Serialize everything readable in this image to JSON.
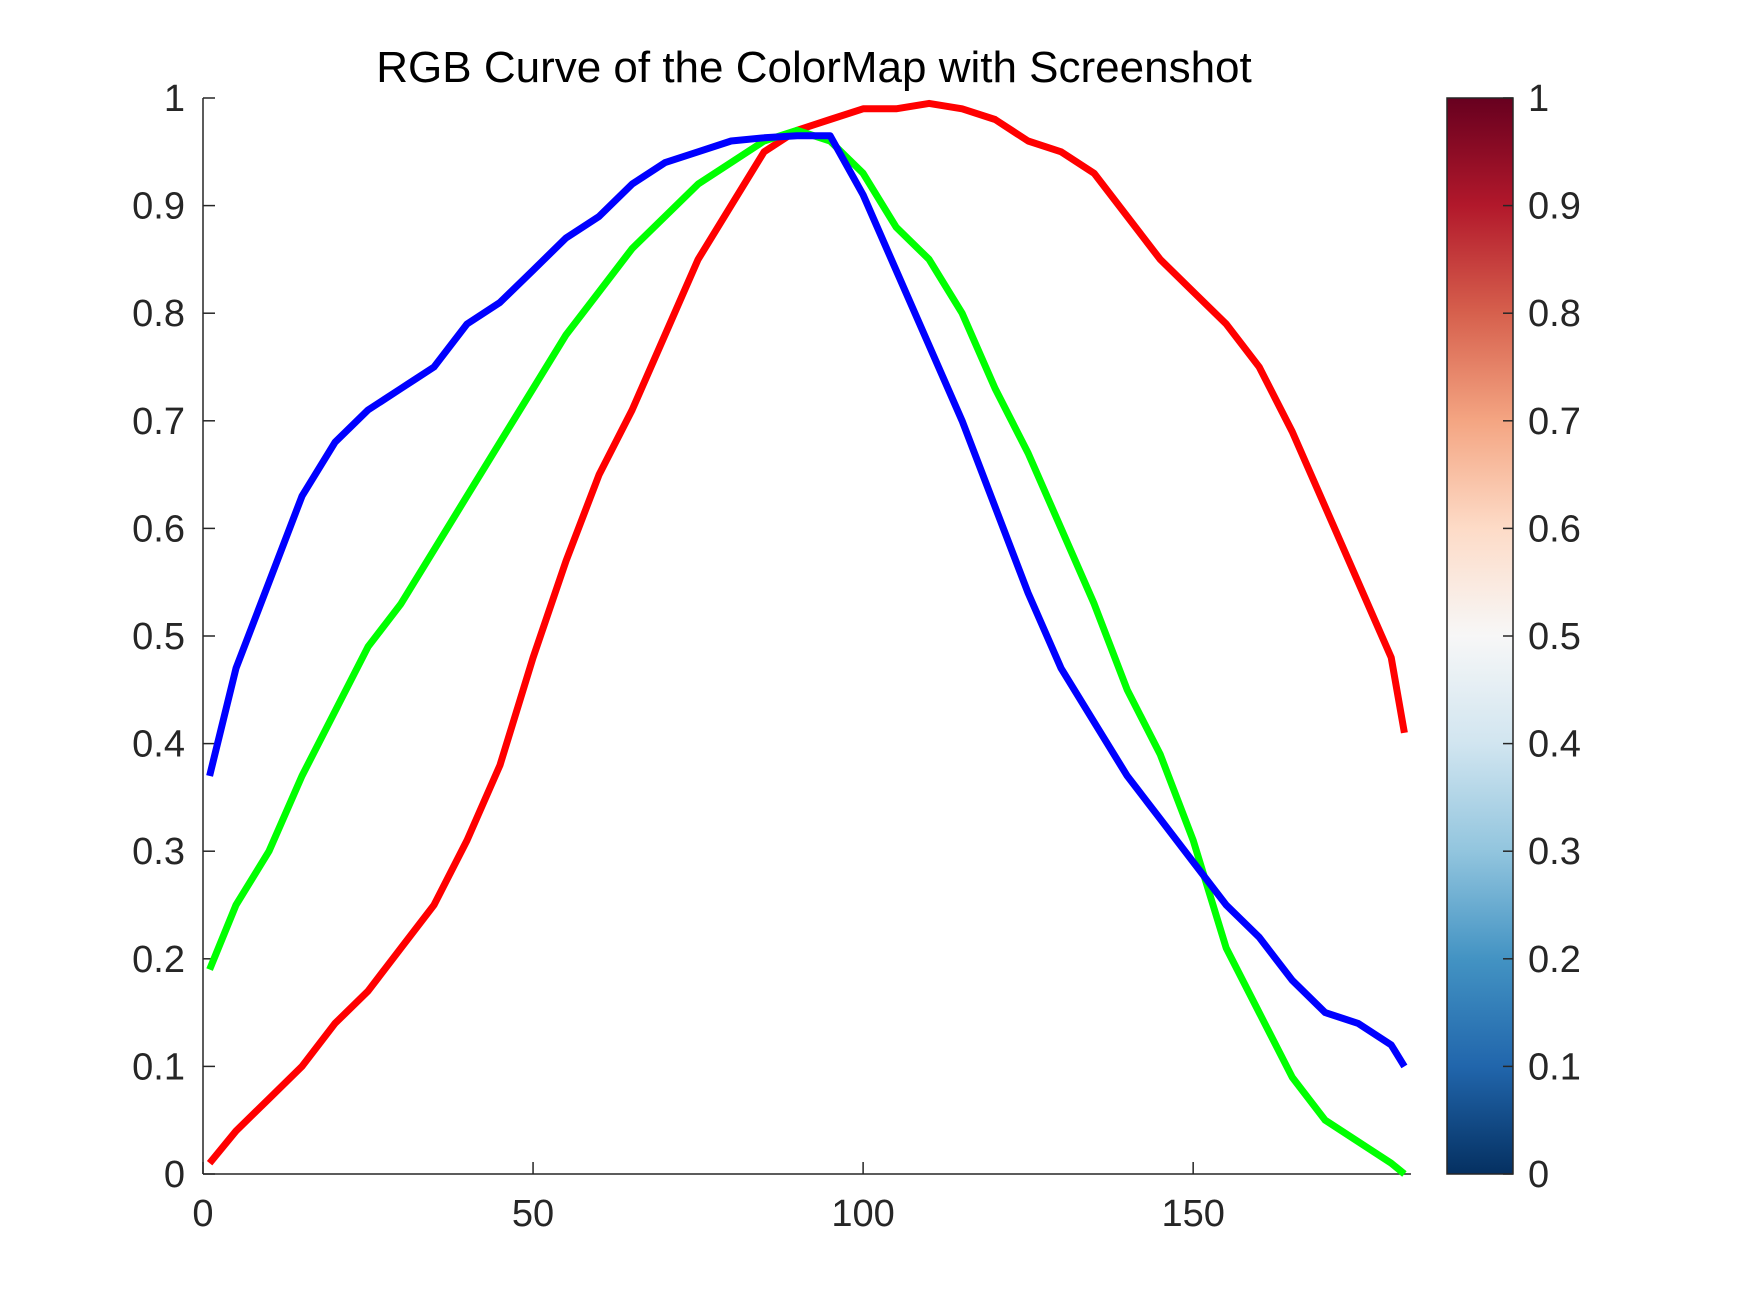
{
  "chart_data": {
    "type": "line",
    "title": "RGB Curve of the ColorMap with Screenshot",
    "xlabel": "",
    "ylabel": "",
    "xlim": [
      0,
      183
    ],
    "ylim": [
      0,
      1
    ],
    "x_ticks": [
      0,
      50,
      100,
      150
    ],
    "x_tick_labels": [
      "0",
      "50",
      "100",
      "150"
    ],
    "y_ticks": [
      0,
      0.1,
      0.2,
      0.3,
      0.4,
      0.5,
      0.6,
      0.7,
      0.8,
      0.9,
      1
    ],
    "y_tick_labels": [
      "0",
      "0.1",
      "0.2",
      "0.3",
      "0.4",
      "0.5",
      "0.6",
      "0.7",
      "0.8",
      "0.9",
      "1"
    ],
    "grid": false,
    "x": [
      1,
      5,
      10,
      15,
      20,
      25,
      30,
      35,
      40,
      45,
      50,
      55,
      60,
      65,
      70,
      75,
      80,
      85,
      90,
      95,
      100,
      105,
      110,
      115,
      120,
      125,
      130,
      135,
      140,
      145,
      150,
      155,
      160,
      165,
      170,
      175,
      180,
      182
    ],
    "series": [
      {
        "color": "#ff0000",
        "values": [
          0.01,
          0.04,
          0.07,
          0.1,
          0.14,
          0.17,
          0.21,
          0.25,
          0.31,
          0.38,
          0.48,
          0.57,
          0.65,
          0.71,
          0.78,
          0.85,
          0.9,
          0.95,
          0.97,
          0.98,
          0.99,
          0.99,
          0.995,
          0.99,
          0.98,
          0.96,
          0.95,
          0.93,
          0.89,
          0.85,
          0.82,
          0.79,
          0.75,
          0.69,
          0.62,
          0.55,
          0.48,
          0.41
        ]
      },
      {
        "color": "#00ff00",
        "values": [
          0.19,
          0.25,
          0.3,
          0.37,
          0.43,
          0.49,
          0.53,
          0.58,
          0.63,
          0.68,
          0.73,
          0.78,
          0.82,
          0.86,
          0.89,
          0.92,
          0.94,
          0.96,
          0.97,
          0.96,
          0.93,
          0.88,
          0.85,
          0.8,
          0.73,
          0.67,
          0.6,
          0.53,
          0.45,
          0.39,
          0.31,
          0.21,
          0.15,
          0.09,
          0.05,
          0.03,
          0.01,
          0.0
        ]
      },
      {
        "color": "#0000ff",
        "values": [
          0.37,
          0.47,
          0.55,
          0.63,
          0.68,
          0.71,
          0.73,
          0.75,
          0.79,
          0.81,
          0.84,
          0.87,
          0.89,
          0.92,
          0.94,
          0.95,
          0.96,
          0.963,
          0.965,
          0.965,
          0.91,
          0.84,
          0.77,
          0.7,
          0.62,
          0.54,
          0.47,
          0.42,
          0.37,
          0.33,
          0.29,
          0.25,
          0.22,
          0.18,
          0.15,
          0.14,
          0.12,
          0.1
        ]
      }
    ],
    "colorbar": {
      "range": [
        0,
        1
      ],
      "ticks": [
        0,
        0.1,
        0.2,
        0.3,
        0.4,
        0.5,
        0.6,
        0.7,
        0.8,
        0.9,
        1
      ],
      "tick_labels": [
        "0",
        "0.1",
        "0.2",
        "0.3",
        "0.4",
        "0.5",
        "0.6",
        "0.7",
        "0.8",
        "0.9",
        "1"
      ],
      "colormap_stops": [
        "#053061",
        "#2166ac",
        "#4393c3",
        "#92c5de",
        "#d1e5f0",
        "#f7f7f7",
        "#fddbc7",
        "#f4a582",
        "#d6604d",
        "#b2182b",
        "#67001f"
      ]
    }
  }
}
